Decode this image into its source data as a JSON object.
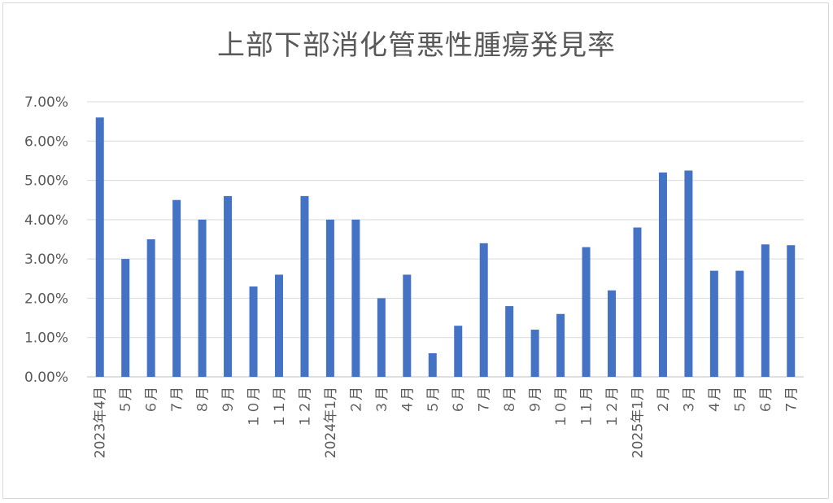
{
  "chart_data": {
    "type": "bar",
    "title": "上部下部消化管悪性腫瘍発見率",
    "xlabel": "",
    "ylabel": "",
    "ylim": [
      0,
      0.07
    ],
    "y_ticks": [
      "0.00%",
      "1.00%",
      "2.00%",
      "3.00%",
      "4.00%",
      "5.00%",
      "6.00%",
      "7.00%"
    ],
    "grid": true,
    "legend": "none",
    "bar_color": "#4472C4",
    "categories": [
      "2023年4月",
      "５月",
      "６月",
      "７月",
      "８月",
      "９月",
      "１０月",
      "１１月",
      "１２月",
      "2024年1月",
      "２月",
      "３月",
      "４月",
      "５月",
      "６月",
      "７月",
      "８月",
      "９月",
      "１０月",
      "１１月",
      "１２月",
      "2025年1月",
      "２月",
      "３月",
      "４月",
      "５月",
      "６月",
      "７月"
    ],
    "values": [
      0.066,
      0.03,
      0.035,
      0.045,
      0.04,
      0.046,
      0.023,
      0.026,
      0.046,
      0.04,
      0.04,
      0.02,
      0.026,
      0.006,
      0.013,
      0.034,
      0.018,
      0.012,
      0.016,
      0.033,
      0.022,
      0.038,
      0.052,
      0.0525,
      0.027,
      0.027,
      0.0337,
      0.0335
    ]
  }
}
